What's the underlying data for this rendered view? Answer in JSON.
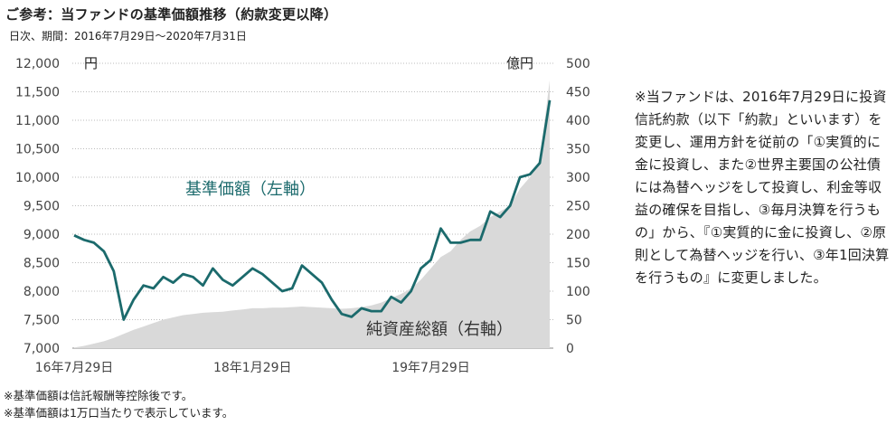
{
  "header": {
    "title": "ご参考：当ファンドの基準価額推移（約款変更以降）",
    "subtitle": "日次、期間：2016年7月29日～2020年7月31日"
  },
  "chart_data": {
    "type": "line+area",
    "left_axis": {
      "unit": "円",
      "ylim": [
        7000,
        12000
      ],
      "ticks": [
        "7,000",
        "7,500",
        "8,000",
        "8,500",
        "9,000",
        "9,500",
        "10,000",
        "10,500",
        "11,000",
        "11,500",
        "12,000"
      ]
    },
    "right_axis": {
      "unit": "億円",
      "ylim": [
        0,
        500
      ],
      "ticks": [
        "0",
        "50",
        "100",
        "150",
        "200",
        "250",
        "300",
        "350",
        "400",
        "450",
        "500"
      ]
    },
    "x_ticks": [
      "16年7月29日",
      "18年1月29日",
      "19年7月29日"
    ],
    "grid": "horizontal dotted",
    "series": [
      {
        "name": "基準価額（左軸）",
        "axis": "left",
        "style": "line",
        "color": "#1b6a6c",
        "x": [
          "2016-07",
          "2016-08",
          "2016-09",
          "2016-10",
          "2016-11",
          "2016-12",
          "2017-01",
          "2017-02",
          "2017-03",
          "2017-04",
          "2017-05",
          "2017-06",
          "2017-07",
          "2017-08",
          "2017-09",
          "2017-10",
          "2017-11",
          "2017-12",
          "2018-01",
          "2018-02",
          "2018-03",
          "2018-04",
          "2018-05",
          "2018-06",
          "2018-07",
          "2018-08",
          "2018-09",
          "2018-10",
          "2018-11",
          "2018-12",
          "2019-01",
          "2019-02",
          "2019-03",
          "2019-04",
          "2019-05",
          "2019-06",
          "2019-07",
          "2019-08",
          "2019-09",
          "2019-10",
          "2019-11",
          "2019-12",
          "2020-01",
          "2020-02",
          "2020-03",
          "2020-04",
          "2020-05",
          "2020-06",
          "2020-07"
        ],
        "values": [
          8980,
          8900,
          8850,
          8700,
          8350,
          7500,
          7850,
          8100,
          8050,
          8250,
          8150,
          8300,
          8250,
          8100,
          8400,
          8200,
          8100,
          8250,
          8400,
          8300,
          8150,
          8000,
          8050,
          8450,
          8300,
          8150,
          7850,
          7600,
          7550,
          7700,
          7650,
          7650,
          7900,
          7800,
          8000,
          8400,
          8550,
          9100,
          8850,
          8850,
          8900,
          8900,
          9400,
          9300,
          9500,
          10000,
          10050,
          10250,
          11350
        ]
      },
      {
        "name": "純資産総額（右軸）",
        "axis": "right",
        "style": "area",
        "color": "#d9d9d9",
        "x": [
          "2016-07",
          "2016-08",
          "2016-09",
          "2016-10",
          "2016-11",
          "2016-12",
          "2017-01",
          "2017-02",
          "2017-03",
          "2017-04",
          "2017-05",
          "2017-06",
          "2017-07",
          "2017-08",
          "2017-09",
          "2017-10",
          "2017-11",
          "2017-12",
          "2018-01",
          "2018-02",
          "2018-03",
          "2018-04",
          "2018-05",
          "2018-06",
          "2018-07",
          "2018-08",
          "2018-09",
          "2018-10",
          "2018-11",
          "2018-12",
          "2019-01",
          "2019-02",
          "2019-03",
          "2019-04",
          "2019-05",
          "2019-06",
          "2019-07",
          "2019-08",
          "2019-09",
          "2019-10",
          "2019-11",
          "2019-12",
          "2020-01",
          "2020-02",
          "2020-03",
          "2020-04",
          "2020-05",
          "2020-06",
          "2020-07"
        ],
        "values": [
          1,
          4,
          8,
          12,
          18,
          25,
          32,
          38,
          44,
          50,
          54,
          58,
          60,
          62,
          63,
          64,
          66,
          68,
          70,
          70,
          71,
          71,
          72,
          73,
          72,
          71,
          70,
          69,
          70,
          72,
          75,
          80,
          88,
          95,
          105,
          120,
          140,
          160,
          170,
          190,
          205,
          215,
          230,
          240,
          250,
          280,
          300,
          330,
          470
        ]
      }
    ]
  },
  "labels": {
    "left_unit": "円",
    "right_unit": "億円",
    "nav_label": "基準価額（左軸）",
    "assets_label": "純資産総額（右軸）"
  },
  "note": "※当ファンドは、2016年7月29日に投資信託約款（以下「約款」といいます）を変更し、運用方針を従前の「①実質的に金に投資し、また②世界主要国の公社債には為替ヘッジをして投資し、利金等収益の確保を目指し、③毎月決算を行うもの」から、『①実質的に金に投資し、②原則として為替ヘッジを行い、③年1回決算を行うもの』に変更しました。",
  "footnotes": [
    "※基準価額は信託報酬等控除後です。",
    "※基準価額は1万口当たりで表示しています。"
  ]
}
